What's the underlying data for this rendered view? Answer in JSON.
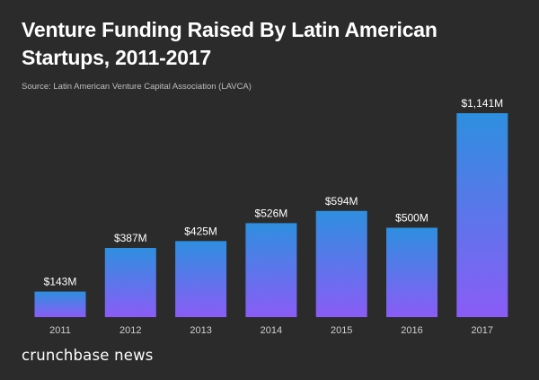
{
  "chart_data": {
    "type": "bar",
    "title": "Venture Funding Raised By Latin American Startups, 2011-2017",
    "subtitle": "Source: Latin American Venture Capital Association (LAVCA)",
    "categories": [
      "2011",
      "2012",
      "2013",
      "2014",
      "2015",
      "2016",
      "2017"
    ],
    "values": [
      143,
      387,
      425,
      526,
      594,
      500,
      1141
    ],
    "labels": [
      "$143M",
      "$387M",
      "$425M",
      "$526M",
      "$594M",
      "$500M",
      "$1,141M"
    ],
    "xlabel": "",
    "ylabel": "",
    "grid": false,
    "colors": {
      "bar_top": "#2e8fdf",
      "bar_bottom": "#8a5cf6",
      "background": "#2b2b2b",
      "text": "#ffffff",
      "tick_text": "#cfcfcf"
    }
  },
  "branding": {
    "logo_text": "crunchbase news"
  }
}
